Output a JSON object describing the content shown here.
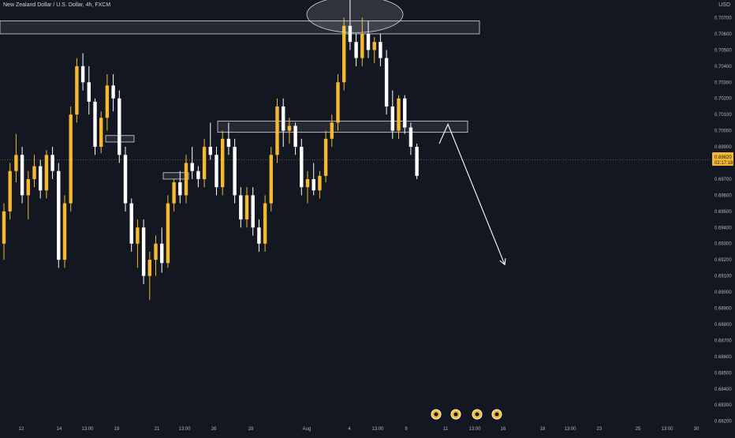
{
  "header": {
    "title": "New Zealand Dollar / U.S. Dollar, 4h, FXCM",
    "currency": "USD"
  },
  "colors": {
    "background": "#131722",
    "bull": "#f5b82e",
    "bear": "#ffffff",
    "zone_stroke": "#d9d9d9",
    "price_line": "#f5b82e",
    "arrow": "#ffffff"
  },
  "price_tag": {
    "price": "0.69820",
    "countdown": "02:17:18"
  },
  "chart_data": {
    "type": "candlestick",
    "title": "New Zealand Dollar / U.S. Dollar, 4h, FXCM",
    "y_axis_label": "USD",
    "ylim": [
      0.6812,
      0.7081
    ],
    "y_ticks": [
      "0.70700",
      "0.70600",
      "0.70500",
      "0.70400",
      "0.70300",
      "0.70200",
      "0.70100",
      "0.70000",
      "0.69900",
      "0.69800",
      "0.69700",
      "0.69600",
      "0.69500",
      "0.69400",
      "0.69300",
      "0.69200",
      "0.69100",
      "0.69000",
      "0.68900",
      "0.68800",
      "0.68700",
      "0.68600",
      "0.68500",
      "0.68400",
      "0.68300",
      "0.68200"
    ],
    "x_ticks": [
      "12",
      "14",
      "13:00",
      "19",
      "21",
      "13:00",
      "26",
      "28",
      "Aug",
      "4",
      "13:00",
      "9",
      "11",
      "13:00",
      "16",
      "18",
      "13:00",
      "23",
      "25",
      "13:00",
      "30"
    ],
    "current_price": 0.6982,
    "key_levels": [
      0.7064,
      0.7003,
      0.6995,
      0.6972
    ],
    "projection": "down",
    "candles": [
      [
        0.693,
        0.6955,
        0.692,
        0.695
      ],
      [
        0.695,
        0.698,
        0.6945,
        0.6975
      ],
      [
        0.6975,
        0.6998,
        0.6968,
        0.6985
      ],
      [
        0.6985,
        0.699,
        0.6955,
        0.696
      ],
      [
        0.696,
        0.6975,
        0.6945,
        0.697
      ],
      [
        0.697,
        0.6985,
        0.6965,
        0.6978
      ],
      [
        0.6978,
        0.6982,
        0.6958,
        0.6963
      ],
      [
        0.6963,
        0.6988,
        0.6958,
        0.6985
      ],
      [
        0.6985,
        0.699,
        0.697,
        0.6975
      ],
      [
        0.6975,
        0.698,
        0.6915,
        0.692
      ],
      [
        0.692,
        0.696,
        0.6915,
        0.6955
      ],
      [
        0.6955,
        0.7015,
        0.695,
        0.701
      ],
      [
        0.701,
        0.7045,
        0.7005,
        0.704
      ],
      [
        0.704,
        0.7048,
        0.7025,
        0.703
      ],
      [
        0.703,
        0.704,
        0.701,
        0.7018
      ],
      [
        0.7018,
        0.702,
        0.6985,
        0.699
      ],
      [
        0.699,
        0.7012,
        0.6986,
        0.7008
      ],
      [
        0.7008,
        0.7035,
        0.7,
        0.7028
      ],
      [
        0.7028,
        0.7035,
        0.7012,
        0.702
      ],
      [
        0.702,
        0.7025,
        0.698,
        0.6985
      ],
      [
        0.6985,
        0.699,
        0.695,
        0.6955
      ],
      [
        0.6955,
        0.6958,
        0.6925,
        0.693
      ],
      [
        0.693,
        0.6945,
        0.6915,
        0.694
      ],
      [
        0.694,
        0.6945,
        0.6905,
        0.691
      ],
      [
        0.691,
        0.6925,
        0.6895,
        0.692
      ],
      [
        0.692,
        0.6935,
        0.691,
        0.693
      ],
      [
        0.693,
        0.694,
        0.6912,
        0.6918
      ],
      [
        0.6918,
        0.696,
        0.6915,
        0.6955
      ],
      [
        0.6955,
        0.697,
        0.695,
        0.6968
      ],
      [
        0.6968,
        0.6975,
        0.6955,
        0.696
      ],
      [
        0.696,
        0.6985,
        0.6955,
        0.698
      ],
      [
        0.698,
        0.699,
        0.697,
        0.6975
      ],
      [
        0.6975,
        0.6978,
        0.6965,
        0.697
      ],
      [
        0.697,
        0.6995,
        0.6965,
        0.699
      ],
      [
        0.699,
        0.7005,
        0.6982,
        0.6985
      ],
      [
        0.6985,
        0.699,
        0.696,
        0.6965
      ],
      [
        0.6965,
        0.7,
        0.696,
        0.6995
      ],
      [
        0.6995,
        0.7005,
        0.6985,
        0.699
      ],
      [
        0.699,
        0.6995,
        0.6955,
        0.696
      ],
      [
        0.696,
        0.6965,
        0.694,
        0.6945
      ],
      [
        0.6945,
        0.6965,
        0.694,
        0.696
      ],
      [
        0.696,
        0.6965,
        0.6935,
        0.694
      ],
      [
        0.694,
        0.6945,
        0.6925,
        0.693
      ],
      [
        0.693,
        0.696,
        0.6925,
        0.6955
      ],
      [
        0.6955,
        0.699,
        0.695,
        0.6985
      ],
      [
        0.6985,
        0.702,
        0.698,
        0.7015
      ],
      [
        0.7015,
        0.702,
        0.699,
        0.7
      ],
      [
        0.7,
        0.7008,
        0.6992,
        0.7003
      ],
      [
        0.7003,
        0.7005,
        0.6985,
        0.699
      ],
      [
        0.699,
        0.6995,
        0.696,
        0.6965
      ],
      [
        0.6965,
        0.6975,
        0.6955,
        0.697
      ],
      [
        0.697,
        0.698,
        0.696,
        0.6963
      ],
      [
        0.6963,
        0.6975,
        0.6958,
        0.6972
      ],
      [
        0.6972,
        0.7,
        0.6968,
        0.6995
      ],
      [
        0.6995,
        0.701,
        0.699,
        0.7005
      ],
      [
        0.7005,
        0.7035,
        0.7,
        0.703
      ],
      [
        0.703,
        0.707,
        0.7025,
        0.7065
      ],
      [
        0.7065,
        0.7081,
        0.705,
        0.7055
      ],
      [
        0.7055,
        0.706,
        0.704,
        0.7045
      ],
      [
        0.7045,
        0.707,
        0.704,
        0.706
      ],
      [
        0.706,
        0.7068,
        0.7045,
        0.705
      ],
      [
        0.705,
        0.7058,
        0.7042,
        0.7055
      ],
      [
        0.7055,
        0.706,
        0.704,
        0.7045
      ],
      [
        0.7045,
        0.705,
        0.701,
        0.7015
      ],
      [
        0.7015,
        0.7025,
        0.6995,
        0.7
      ],
      [
        0.7,
        0.7022,
        0.6995,
        0.702
      ],
      [
        0.702,
        0.7022,
        0.6998,
        0.7002
      ],
      [
        0.7002,
        0.7005,
        0.6985,
        0.699
      ],
      [
        0.699,
        0.6992,
        0.697,
        0.6972
      ]
    ]
  }
}
